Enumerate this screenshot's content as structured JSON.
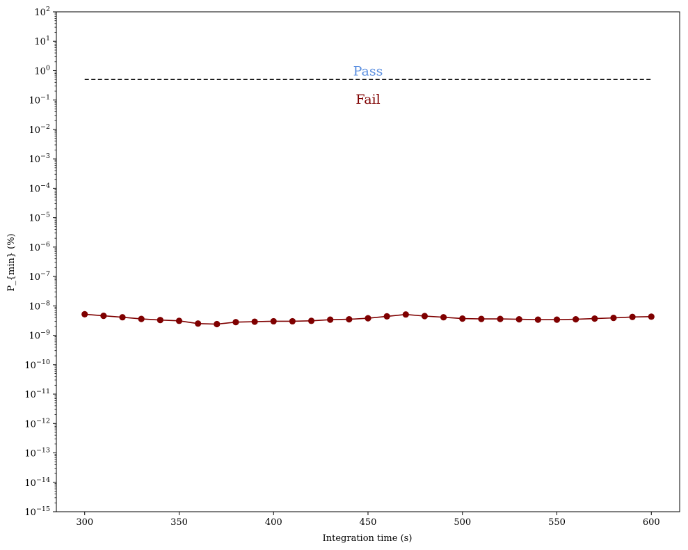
{
  "chart_data": {
    "type": "line",
    "title": "",
    "xlabel": "Integration time (s)",
    "ylabel": "P_{min} (%)",
    "xscale": "linear",
    "yscale": "log",
    "xlim": [
      285,
      615
    ],
    "ylim": [
      1e-15,
      100
    ],
    "grid": false,
    "xticks": [
      300,
      350,
      400,
      450,
      500,
      550,
      600
    ],
    "xtick_labels": [
      "300",
      "350",
      "400",
      "450",
      "500",
      "550",
      "600"
    ],
    "ytick_exponents": [
      -15,
      -14,
      -13,
      -12,
      -11,
      -10,
      -9,
      -8,
      -7,
      -6,
      -5,
      -4,
      -3,
      -2,
      -1,
      0,
      1,
      2
    ],
    "series": [
      {
        "color": "#7f0000",
        "marker": "circle",
        "x": [
          300,
          310,
          320,
          330,
          340,
          350,
          360,
          370,
          380,
          390,
          400,
          410,
          420,
          430,
          440,
          450,
          460,
          470,
          480,
          490,
          500,
          510,
          520,
          530,
          540,
          550,
          560,
          570,
          580,
          590,
          600
        ],
        "y": [
          5.2e-09,
          4.6e-09,
          4.1e-09,
          3.6e-09,
          3.3e-09,
          3.1e-09,
          2.5e-09,
          2.4e-09,
          2.8e-09,
          2.9e-09,
          3e-09,
          3e-09,
          3.1e-09,
          3.4e-09,
          3.5e-09,
          3.8e-09,
          4.4e-09,
          5.1e-09,
          4.5e-09,
          4.1e-09,
          3.7e-09,
          3.6e-09,
          3.6e-09,
          3.5e-09,
          3.4e-09,
          3.4e-09,
          3.5e-09,
          3.7e-09,
          3.9e-09,
          4.2e-09,
          4.3e-09
        ]
      }
    ],
    "threshold": {
      "y": 0.5,
      "x_range": [
        300,
        600
      ],
      "style": "dashed",
      "color": "#000000"
    },
    "annotations": [
      {
        "text": "Pass",
        "x": 450,
        "y": 1.0,
        "color": "#5b8fe0"
      },
      {
        "text": "Fail",
        "x": 450,
        "y": 0.11,
        "color": "#7f0000"
      }
    ]
  }
}
